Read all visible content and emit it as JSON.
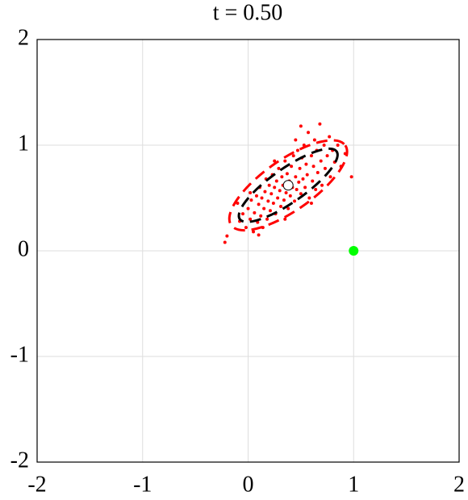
{
  "chart_data": {
    "type": "scatter",
    "title": "t = 0.50",
    "xlim": [
      -2,
      2
    ],
    "ylim": [
      -2,
      2
    ],
    "xticks": [
      -2,
      -1,
      0,
      1,
      2
    ],
    "yticks": [
      -2,
      -1,
      0,
      1,
      2
    ],
    "grid": true,
    "series": [
      {
        "color": "#ff0000",
        "x": [
          -0.22,
          -0.2,
          -0.08,
          -0.05,
          -0.02,
          0.0,
          0.02,
          0.03,
          0.05,
          0.06,
          0.08,
          0.09,
          0.1,
          0.11,
          0.12,
          0.13,
          0.14,
          0.15,
          0.16,
          0.17,
          0.18,
          0.19,
          0.2,
          0.21,
          0.22,
          0.23,
          0.24,
          0.25,
          0.26,
          0.27,
          0.28,
          0.29,
          0.3,
          0.31,
          0.32,
          0.33,
          0.34,
          0.35,
          0.36,
          0.37,
          0.38,
          0.39,
          0.4,
          0.41,
          0.42,
          0.43,
          0.44,
          0.45,
          0.46,
          0.47,
          0.48,
          0.49,
          0.5,
          0.51,
          0.52,
          0.53,
          0.54,
          0.55,
          0.56,
          0.57,
          0.58,
          0.6,
          0.61,
          0.62,
          0.63,
          0.64,
          0.65,
          0.66,
          0.68,
          0.69,
          0.7,
          0.72,
          0.73,
          0.75,
          0.77,
          0.78,
          0.8,
          0.82,
          0.85,
          0.88,
          0.92,
          0.98,
          0.02,
          0.1,
          0.35,
          0.25,
          0.45,
          0.6,
          0.5,
          -0.1
        ],
        "y": [
          0.08,
          0.14,
          0.28,
          0.35,
          0.22,
          0.4,
          0.3,
          0.48,
          0.18,
          0.36,
          0.52,
          0.27,
          0.44,
          0.6,
          0.33,
          0.5,
          0.22,
          0.4,
          0.56,
          0.68,
          0.3,
          0.47,
          0.62,
          0.38,
          0.54,
          0.72,
          0.45,
          0.6,
          0.35,
          0.66,
          0.5,
          0.78,
          0.57,
          0.42,
          0.7,
          0.62,
          0.48,
          0.85,
          0.55,
          0.73,
          0.4,
          0.66,
          0.52,
          0.8,
          0.6,
          0.9,
          0.47,
          0.7,
          0.58,
          0.95,
          0.65,
          0.78,
          0.54,
          0.88,
          0.68,
          1.0,
          0.6,
          0.82,
          0.72,
          1.12,
          0.5,
          0.9,
          0.66,
          0.8,
          1.05,
          0.58,
          0.95,
          0.74,
          1.2,
          0.85,
          0.62,
          1.0,
          0.78,
          0.9,
          1.08,
          0.7,
          0.95,
          0.84,
          1.0,
          0.8,
          0.92,
          0.7,
          0.55,
          0.15,
          0.3,
          0.85,
          1.05,
          0.45,
          1.18,
          0.45
        ]
      }
    ],
    "ellipses": [
      {
        "cx": 0.38,
        "cy": 0.62,
        "rx": 0.66,
        "ry": 0.24,
        "angle": 35,
        "color": "#ff0000"
      },
      {
        "cx": 0.38,
        "cy": 0.62,
        "rx": 0.56,
        "ry": 0.16,
        "angle": 35,
        "color": "#000000"
      }
    ],
    "markers": [
      {
        "x": 0.38,
        "y": 0.62,
        "color": "#ffffff"
      },
      {
        "x": 1,
        "y": 0,
        "color": "#00ff00"
      }
    ]
  }
}
